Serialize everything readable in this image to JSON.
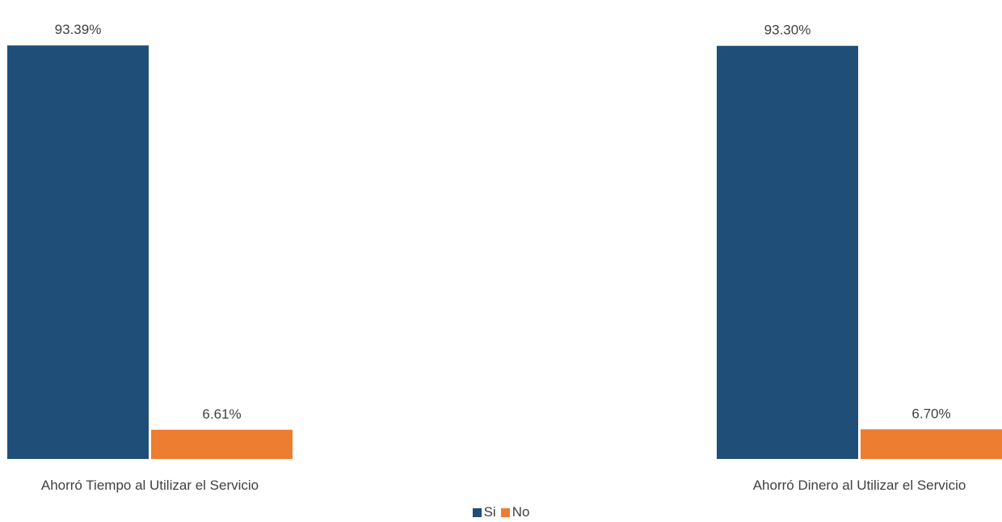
{
  "chart_data": {
    "type": "bar",
    "title": "",
    "xlabel": "",
    "ylabel": "",
    "categories": [
      "Ahorró Tiempo al Utilizar el Servicio",
      "Ahorró Dinero al Utilizar el Servicio"
    ],
    "series": [
      {
        "name": "Si",
        "values": [
          93.39,
          93.3
        ],
        "labels": [
          "93.39%",
          "93.30%"
        ],
        "color": "#1F4E79"
      },
      {
        "name": "No",
        "values": [
          6.61,
          6.7
        ],
        "labels": [
          "6.61%",
          "6.70%"
        ],
        "color": "#ED7D31"
      }
    ],
    "ylim": [
      0,
      100
    ],
    "grid": false,
    "legend_position": "bottom"
  }
}
